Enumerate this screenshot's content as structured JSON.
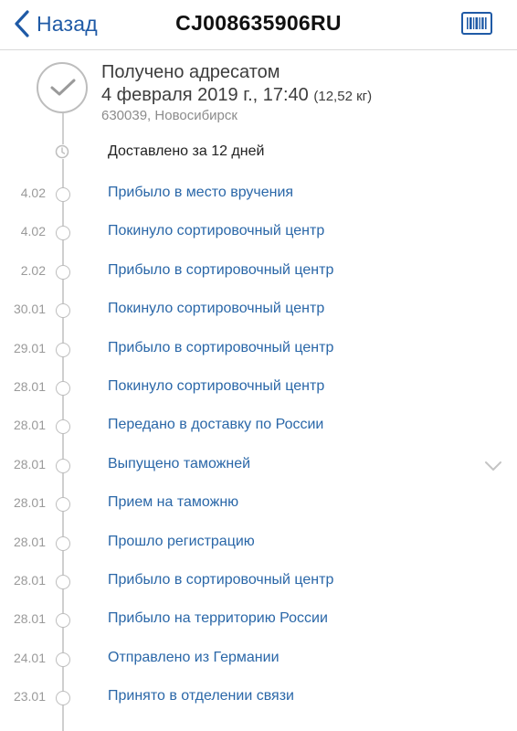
{
  "header": {
    "back_label": "Назад",
    "title": "CJ008635906RU",
    "barcode_icon": "barcode-icon",
    "accent_color": "#1f5aa6"
  },
  "status": {
    "title": "Получено адресатом",
    "datetime": "4 февраля 2019 г., 17:40",
    "weight": "(12,52 кг)",
    "address": "630039, Новосибирск",
    "icon": "checkmark-icon"
  },
  "delivered_summary": {
    "text": "Доставлено за 12 дней",
    "icon": "clock-icon"
  },
  "events": [
    {
      "date": "4.02",
      "label": "Прибыло в место вручения"
    },
    {
      "date": "4.02",
      "label": "Покинуло сортировочный центр"
    },
    {
      "date": "2.02",
      "label": "Прибыло в сортировочный центр"
    },
    {
      "date": "30.01",
      "label": "Покинуло сортировочный центр"
    },
    {
      "date": "29.01",
      "label": "Прибыло в сортировочный центр"
    },
    {
      "date": "28.01",
      "label": "Покинуло сортировочный центр"
    },
    {
      "date": "28.01",
      "label": "Передано в доставку по России"
    },
    {
      "date": "28.01",
      "label": "Выпущено таможней",
      "expandable": true
    },
    {
      "date": "28.01",
      "label": "Прием на таможню"
    },
    {
      "date": "28.01",
      "label": "Прошло регистрацию"
    },
    {
      "date": "28.01",
      "label": "Прибыло в сортировочный центр"
    },
    {
      "date": "28.01",
      "label": "Прибыло на территорию России"
    },
    {
      "date": "24.01",
      "label": "Отправлено из Германии"
    },
    {
      "date": "23.01",
      "label": "Принято в отделении связи"
    }
  ],
  "colors": {
    "link": "#2a67a8",
    "muted": "#9a9a9a",
    "timeline": "#cfcfcf"
  }
}
